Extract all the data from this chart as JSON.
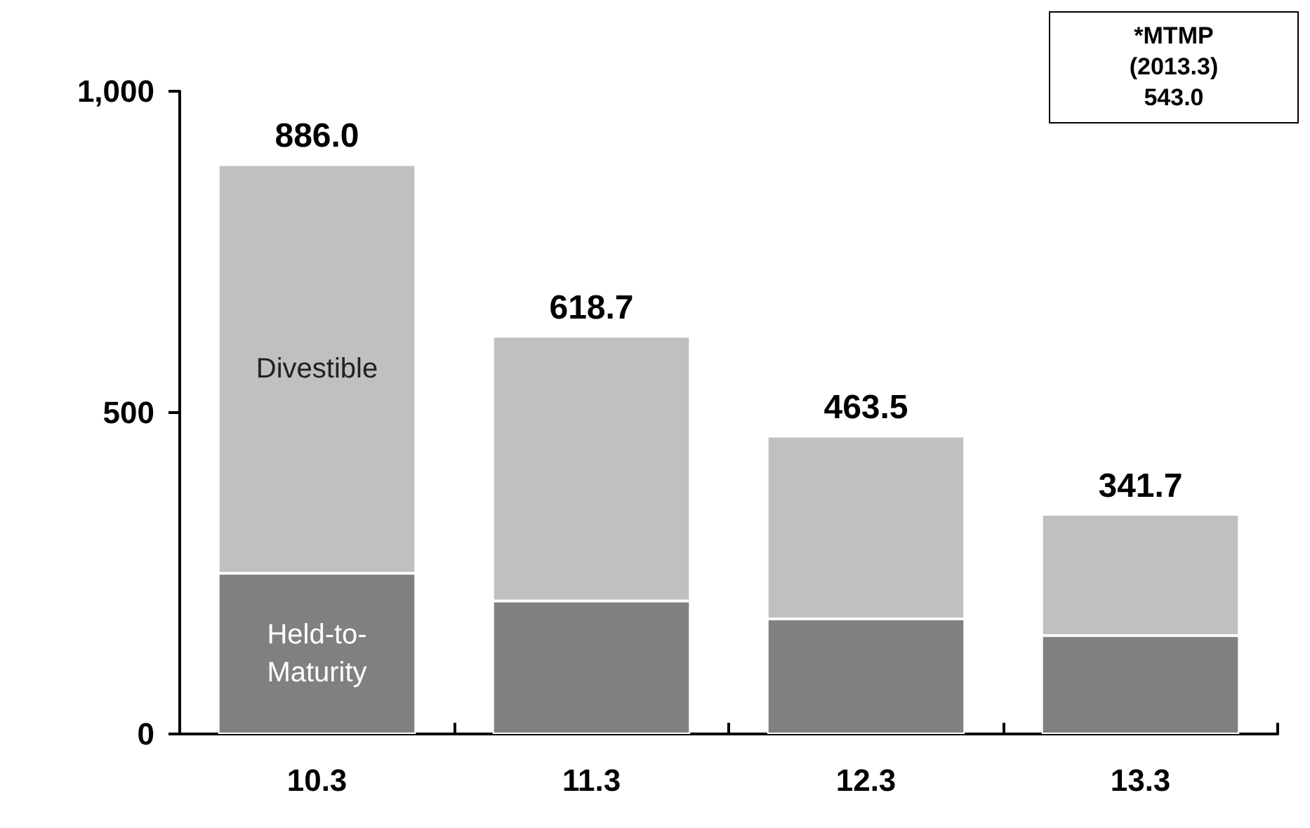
{
  "chart_data": {
    "type": "bar",
    "stacked": true,
    "categories": [
      "10.3",
      "11.3",
      "12.3",
      "13.3"
    ],
    "series": [
      {
        "name": "Held-to-Maturity",
        "color": "#808080",
        "values": [
          250,
          207,
          179,
          153
        ]
      },
      {
        "name": "Divestible",
        "color": "#c0c0c0",
        "values": [
          636,
          411.7,
          284.5,
          188.7
        ]
      }
    ],
    "totals": [
      "886.0",
      "618.7",
      "463.5",
      "341.7"
    ],
    "ylim": [
      0,
      1000
    ],
    "yticks": [
      0,
      500,
      {
        "value": 1000,
        "label": "1,000"
      }
    ],
    "grid": false,
    "legend": false,
    "annotations": [
      "*MTMP\n(2013.3)\n543.0"
    ]
  }
}
